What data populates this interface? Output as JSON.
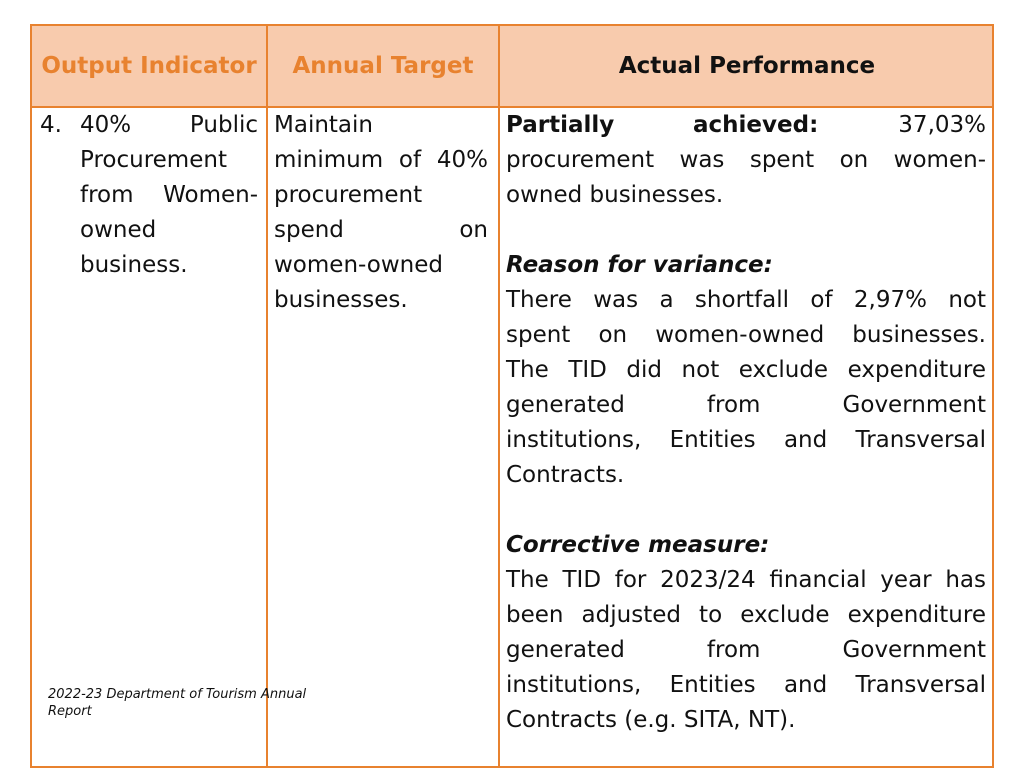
{
  "table": {
    "headers": [
      "Output Indicator",
      "Annual Target",
      "Actual Performance"
    ],
    "row": {
      "number": "4.",
      "indicator": [
        "40% Public",
        "Procurement",
        "from Women-",
        "owned",
        "business."
      ],
      "target": [
        "Maintain",
        "minimum of 40%",
        "procurement",
        "spend on",
        "women-owned",
        "businesses."
      ],
      "performance": {
        "status_label": "Partially achieved:",
        "status_value": "37,03%",
        "status_text": [
          "procurement was spent on women-",
          "owned businesses."
        ],
        "reason_title": "Reason for variance:",
        "reason_lines": [
          "There was a shortfall of 2,97% not",
          "spent on women-owned businesses.",
          "The TID did not exclude expenditure",
          "generated from Government",
          "institutions, Entities and Transversal",
          "Contracts."
        ],
        "corrective_title": "Corrective measure:",
        "corrective_lines": [
          "The TID for 2023/24 financial year has",
          "been adjusted to exclude expenditure",
          "generated from Government",
          "institutions, Entities and Transversal",
          "Contracts (e.g. SITA, NT)."
        ]
      }
    }
  },
  "footer": "2022-23 Department of Tourism Annual Report"
}
